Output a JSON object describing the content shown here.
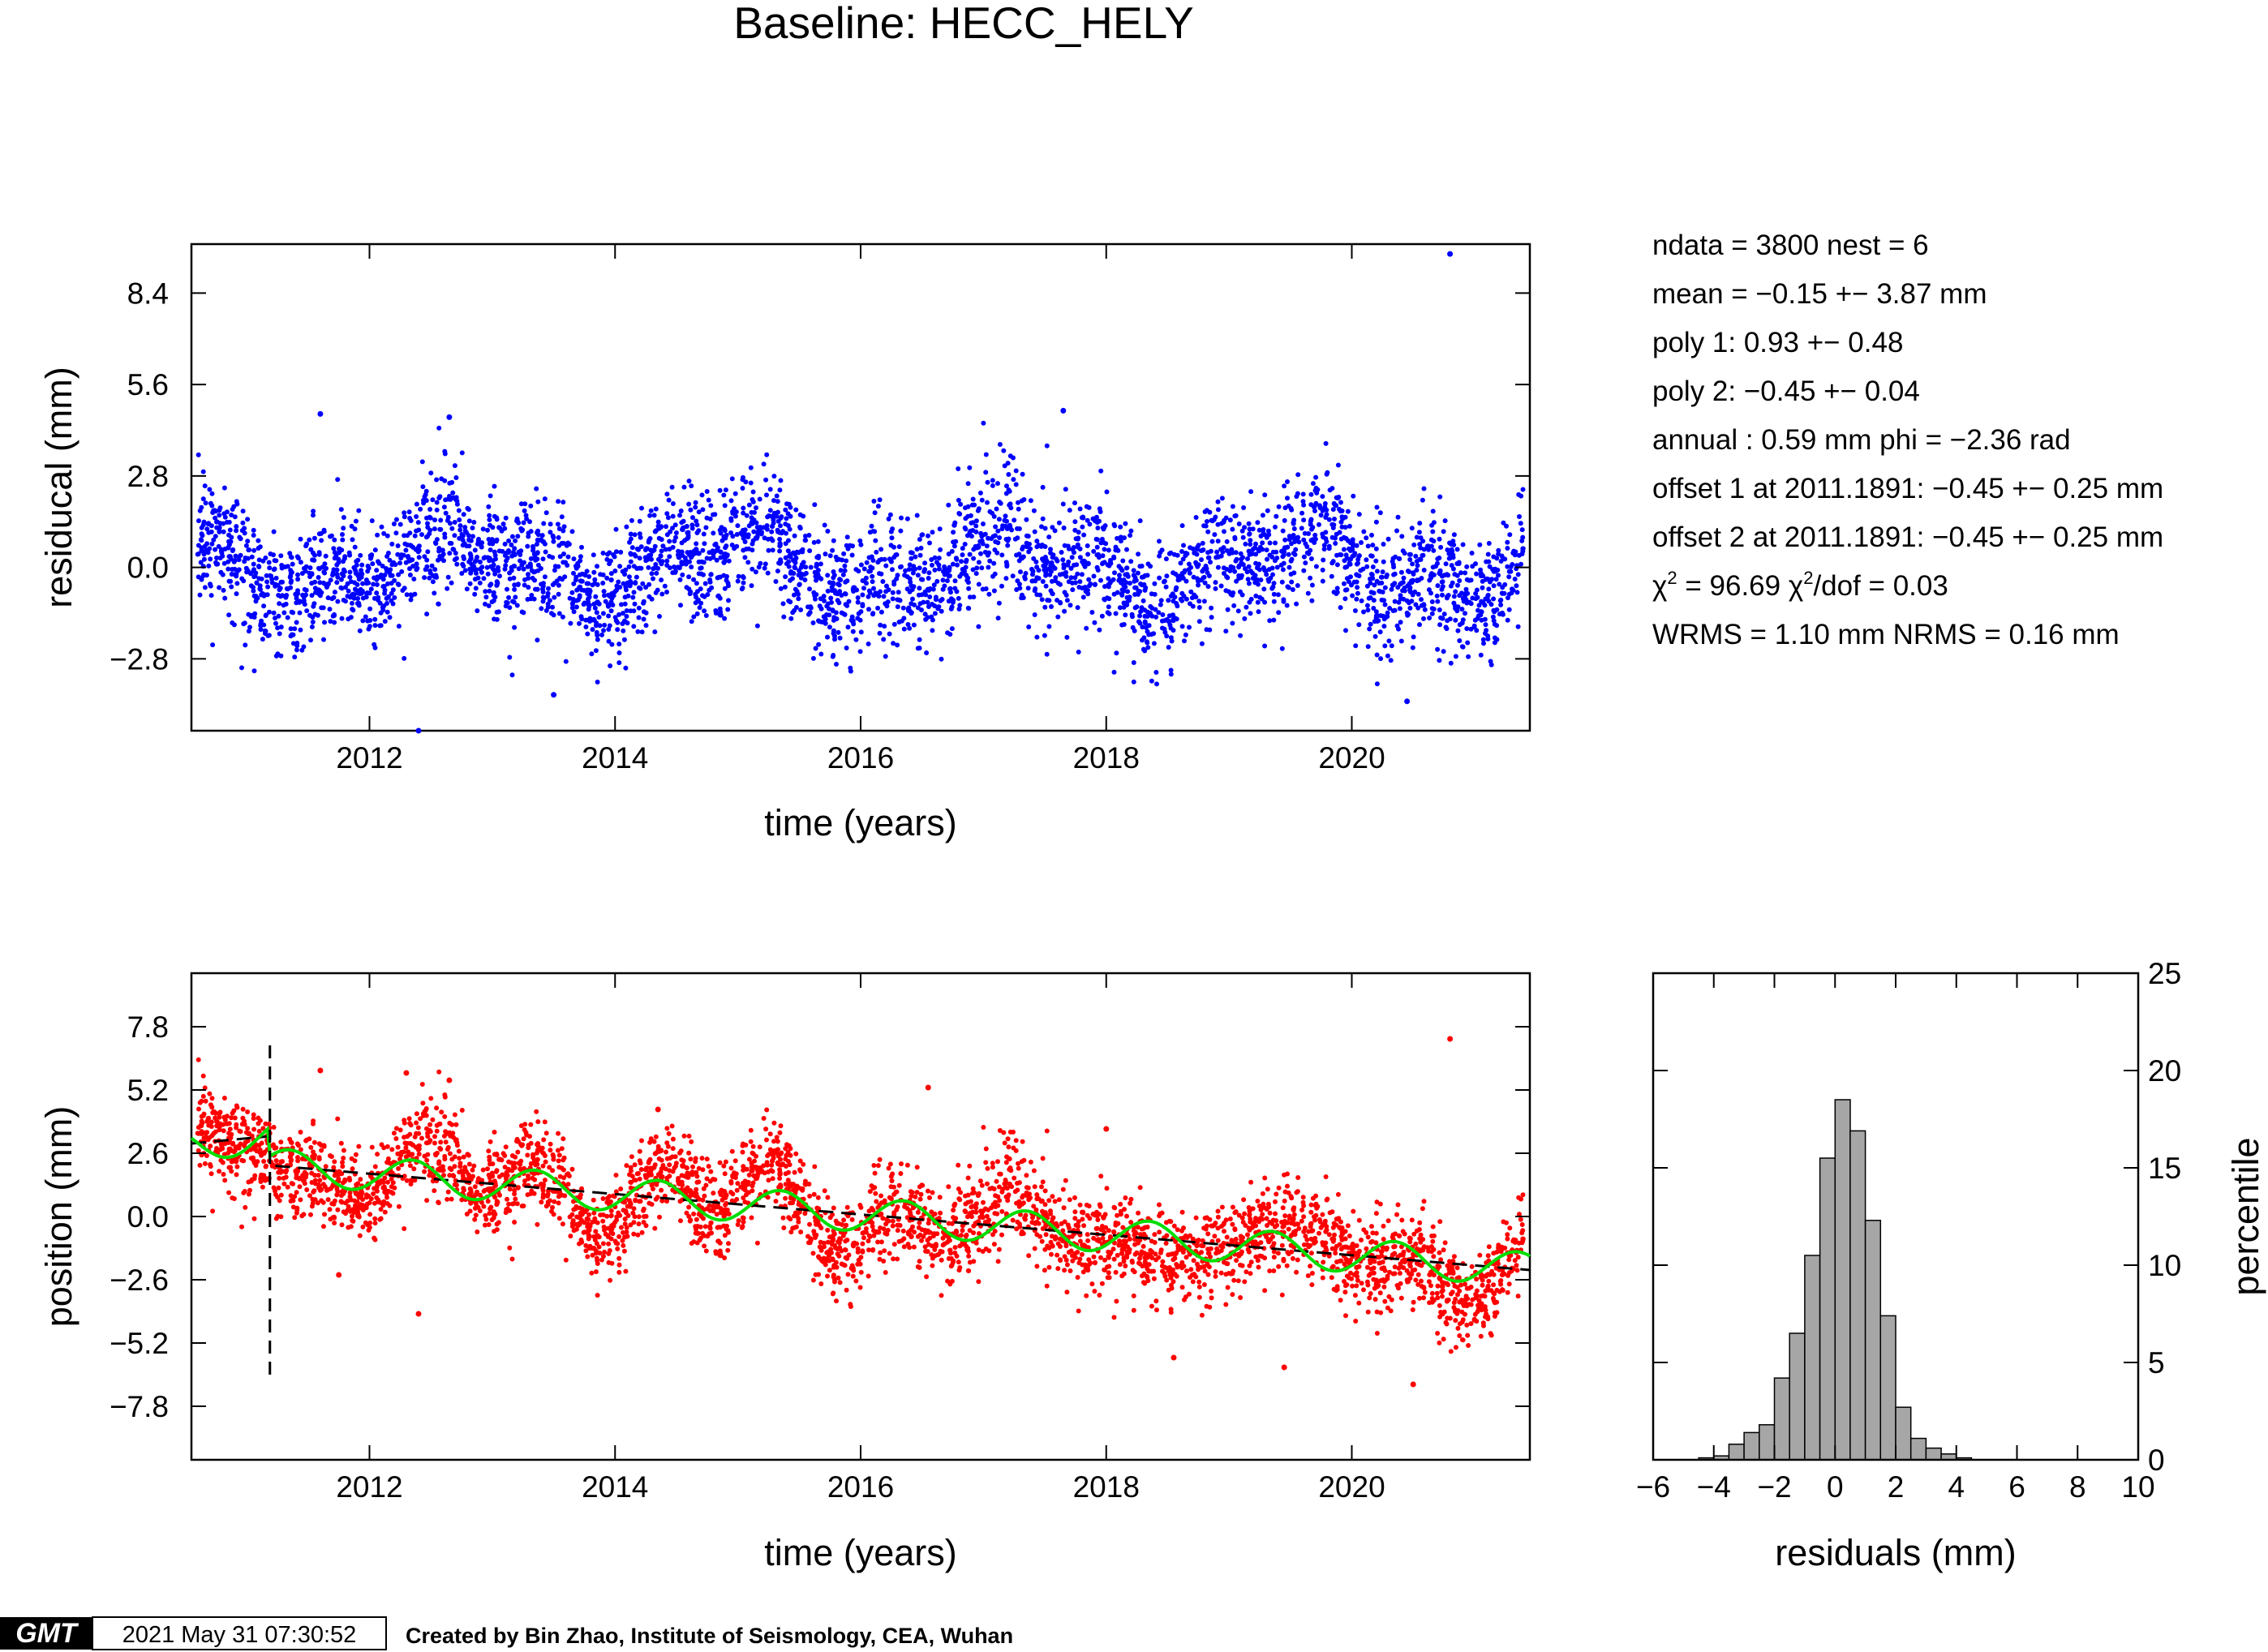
{
  "title": "Baseline: HECC_HELY",
  "stats": [
    "ndata = 3800  nest = 6",
    "mean = −0.15 +− 3.87 mm",
    "poly 1: 0.93 +− 0.48",
    "poly 2: −0.45 +− 0.04",
    "annual : 0.59 mm  phi = −2.36 rad",
    "offset 1 at 2011.1891: −0.45 +− 0.25 mm",
    "offset 2 at 2011.1891: −0.45 +− 0.25 mm"
  ],
  "stats_chi": {
    "chi": "χ",
    "sq": "2",
    "part1": " = 96.69  ",
    "part2": "/dof = 0.03"
  },
  "stats_rms": "WRMS = 1.10 mm  NRMS = 0.16 mm",
  "footer": {
    "logo": "GMT",
    "timestamp": "2021 May 31 07:30:52",
    "credit": "Created by Bin Zhao, Institute of Seismology, CEA, Wuhan"
  },
  "colors": {
    "residual": "#0000ff",
    "position": "#ff0000",
    "model": "#00dd00",
    "trend": "#000000",
    "hist_bar": "#a6a6a6"
  },
  "chart_data": [
    {
      "type": "scatter",
      "id": "residual",
      "xlabel": "time (years)",
      "ylabel": "residucal (mm)",
      "xlim": [
        2010.55,
        2021.45
      ],
      "ylim": [
        -5.0,
        9.9
      ],
      "xticks": [
        "2012",
        "2014",
        "2016",
        "2018",
        "2020"
      ],
      "yticks": [
        "−2.8",
        "0.0",
        "2.8",
        "5.6",
        "8.4"
      ],
      "ytick_values": [
        -2.8,
        0.0,
        2.8,
        5.6,
        8.4
      ],
      "series": [
        {
          "color": "#0000ff",
          "n_points": 3800
        }
      ],
      "outliers": [
        [
          2020.8,
          9.6
        ],
        [
          2011.6,
          4.7
        ],
        [
          2012.65,
          4.6
        ],
        [
          2017.65,
          4.8
        ],
        [
          2012.4,
          -5.0
        ],
        [
          2013.5,
          -3.9
        ],
        [
          2020.45,
          -4.1
        ]
      ]
    },
    {
      "type": "scatter",
      "id": "position",
      "xlabel": "time (years)",
      "ylabel": "position (mm)",
      "xlim": [
        2010.55,
        2021.45
      ],
      "ylim": [
        -10.0,
        10.0
      ],
      "xticks": [
        "2012",
        "2014",
        "2016",
        "2018",
        "2020"
      ],
      "yticks": [
        "−7.8",
        "−5.2",
        "−2.6",
        "0.0",
        "2.6",
        "5.2",
        "7.8"
      ],
      "ytick_values": [
        -7.8,
        -5.2,
        -2.6,
        0.0,
        2.6,
        5.2,
        7.8
      ],
      "series": [
        {
          "color": "#ff0000",
          "n_points": 3800
        }
      ],
      "offset_epoch": 2011.1891,
      "trend_line": [
        [
          2010.55,
          3.0
        ],
        [
          2011.1891,
          3.3
        ],
        [
          2011.1891,
          2.1
        ],
        [
          2021.45,
          -2.2
        ]
      ],
      "annual_amplitude_mm": 0.59,
      "outliers": [
        [
          2020.8,
          7.3
        ],
        [
          2011.6,
          6.0
        ],
        [
          2012.3,
          5.9
        ],
        [
          2012.65,
          5.6
        ],
        [
          2016.55,
          5.3
        ],
        [
          2014.35,
          4.4
        ],
        [
          2018.0,
          3.6
        ],
        [
          2012.4,
          -4.0
        ],
        [
          2011.75,
          -2.4
        ],
        [
          2018.55,
          -5.8
        ],
        [
          2019.45,
          -6.2
        ],
        [
          2020.5,
          -6.9
        ]
      ]
    },
    {
      "type": "bar",
      "id": "histogram",
      "xlabel": "residuals (mm)",
      "ylabel": "percentile",
      "xlim": [
        -6,
        10
      ],
      "ylim": [
        0,
        25
      ],
      "xticks": [
        "−6",
        "−4",
        "−2",
        "0",
        "2",
        "4",
        "6",
        "8",
        "10"
      ],
      "yticks": [
        "0",
        "5",
        "10",
        "15",
        "20",
        "25"
      ],
      "bin_width": 0.5,
      "bin_centers": [
        -4.25,
        -3.75,
        -3.25,
        -2.75,
        -2.25,
        -1.75,
        -1.25,
        -0.75,
        -0.25,
        0.25,
        0.75,
        1.25,
        1.75,
        2.25,
        2.75,
        3.25,
        3.75,
        4.25
      ],
      "values": [
        0.1,
        0.2,
        0.8,
        1.4,
        1.8,
        4.2,
        6.5,
        10.5,
        15.5,
        18.5,
        16.9,
        12.3,
        7.4,
        2.7,
        1.1,
        0.6,
        0.3,
        0.1
      ]
    }
  ]
}
